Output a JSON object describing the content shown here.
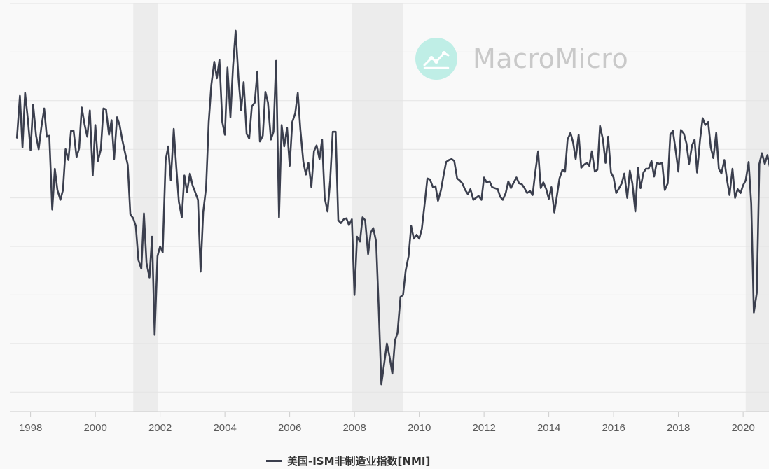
{
  "brand": {
    "name": "MacroMicro",
    "logo_icon": "trend-chart-icon"
  },
  "colors": {
    "line": "#3b3f4e",
    "recession": "#ececec",
    "grid": "#e4e4e4",
    "axis": "#cccccc",
    "logo_circle": "#bfeee6"
  },
  "chart_data": {
    "type": "line",
    "series": [
      {
        "name": "美国-ISM非制造业指数[NMI]",
        "points": [
          [
            1997.58,
            56.2
          ],
          [
            1997.67,
            60.5
          ],
          [
            1997.75,
            55.2
          ],
          [
            1997.83,
            60.8
          ],
          [
            1997.92,
            58.0
          ],
          [
            1998.0,
            54.9
          ],
          [
            1998.08,
            59.6
          ],
          [
            1998.17,
            56.4
          ],
          [
            1998.25,
            55.0
          ],
          [
            1998.33,
            57.2
          ],
          [
            1998.42,
            59.2
          ],
          [
            1998.5,
            56.3
          ],
          [
            1998.58,
            56.4
          ],
          [
            1998.67,
            48.8
          ],
          [
            1998.75,
            53.0
          ],
          [
            1998.83,
            50.8
          ],
          [
            1998.92,
            49.8
          ],
          [
            1999.0,
            50.8
          ],
          [
            1999.08,
            55.0
          ],
          [
            1999.17,
            53.9
          ],
          [
            1999.25,
            56.9
          ],
          [
            1999.33,
            56.9
          ],
          [
            1999.42,
            54.2
          ],
          [
            1999.5,
            55.1
          ],
          [
            1999.58,
            59.3
          ],
          [
            1999.67,
            57.5
          ],
          [
            1999.75,
            56.3
          ],
          [
            1999.83,
            59.0
          ],
          [
            1999.92,
            52.3
          ],
          [
            2000.0,
            57.5
          ],
          [
            2000.08,
            53.8
          ],
          [
            2000.17,
            55.0
          ],
          [
            2000.25,
            59.2
          ],
          [
            2000.33,
            59.1
          ],
          [
            2000.42,
            56.5
          ],
          [
            2000.5,
            58.0
          ],
          [
            2000.58,
            54.0
          ],
          [
            2000.67,
            58.3
          ],
          [
            2000.75,
            57.5
          ],
          [
            2000.83,
            56.0
          ],
          [
            2000.92,
            54.6
          ],
          [
            2001.0,
            53.4
          ],
          [
            2001.08,
            48.3
          ],
          [
            2001.17,
            47.9
          ],
          [
            2001.25,
            47.1
          ],
          [
            2001.33,
            43.6
          ],
          [
            2001.42,
            42.7
          ],
          [
            2001.5,
            48.4
          ],
          [
            2001.58,
            43.3
          ],
          [
            2001.67,
            41.8
          ],
          [
            2001.75,
            46.0
          ],
          [
            2001.83,
            35.9
          ],
          [
            2001.92,
            44.0
          ],
          [
            2002.0,
            45.0
          ],
          [
            2002.08,
            44.4
          ],
          [
            2002.17,
            53.9
          ],
          [
            2002.25,
            55.3
          ],
          [
            2002.33,
            51.8
          ],
          [
            2002.42,
            57.1
          ],
          [
            2002.5,
            53.1
          ],
          [
            2002.58,
            49.6
          ],
          [
            2002.67,
            48.0
          ],
          [
            2002.75,
            52.3
          ],
          [
            2002.83,
            50.6
          ],
          [
            2002.92,
            52.5
          ],
          [
            2003.0,
            51.3
          ],
          [
            2003.08,
            50.6
          ],
          [
            2003.17,
            49.8
          ],
          [
            2003.25,
            42.4
          ],
          [
            2003.33,
            48.5
          ],
          [
            2003.42,
            51.1
          ],
          [
            2003.5,
            57.8
          ],
          [
            2003.58,
            61.6
          ],
          [
            2003.67,
            64.0
          ],
          [
            2003.75,
            62.3
          ],
          [
            2003.83,
            64.2
          ],
          [
            2003.92,
            57.8
          ],
          [
            2004.0,
            56.5
          ],
          [
            2004.08,
            63.4
          ],
          [
            2004.17,
            58.3
          ],
          [
            2004.25,
            63.5
          ],
          [
            2004.33,
            67.2
          ],
          [
            2004.42,
            62.2
          ],
          [
            2004.5,
            59.0
          ],
          [
            2004.58,
            61.9
          ],
          [
            2004.67,
            56.6
          ],
          [
            2004.75,
            56.1
          ],
          [
            2004.83,
            59.4
          ],
          [
            2004.92,
            59.8
          ],
          [
            2005.0,
            63.0
          ],
          [
            2005.08,
            55.8
          ],
          [
            2005.17,
            56.4
          ],
          [
            2005.25,
            60.9
          ],
          [
            2005.33,
            59.8
          ],
          [
            2005.42,
            56.0
          ],
          [
            2005.5,
            56.8
          ],
          [
            2005.58,
            64.1
          ],
          [
            2005.67,
            48.0
          ],
          [
            2005.75,
            57.5
          ],
          [
            2005.83,
            55.3
          ],
          [
            2005.92,
            57.2
          ],
          [
            2006.0,
            53.3
          ],
          [
            2006.08,
            57.8
          ],
          [
            2006.17,
            58.7
          ],
          [
            2006.25,
            60.8
          ],
          [
            2006.33,
            57.0
          ],
          [
            2006.42,
            53.7
          ],
          [
            2006.5,
            52.4
          ],
          [
            2006.58,
            53.6
          ],
          [
            2006.67,
            51.1
          ],
          [
            2006.75,
            54.8
          ],
          [
            2006.83,
            55.4
          ],
          [
            2006.92,
            54.0
          ],
          [
            2007.0,
            56.0
          ],
          [
            2007.08,
            50.0
          ],
          [
            2007.17,
            48.6
          ],
          [
            2007.25,
            51.8
          ],
          [
            2007.33,
            56.8
          ],
          [
            2007.42,
            56.8
          ],
          [
            2007.5,
            47.7
          ],
          [
            2007.58,
            47.4
          ],
          [
            2007.67,
            47.8
          ],
          [
            2007.75,
            47.9
          ],
          [
            2007.83,
            47.2
          ],
          [
            2007.92,
            47.8
          ],
          [
            2008.0,
            40.0
          ],
          [
            2008.08,
            46.0
          ],
          [
            2008.17,
            45.5
          ],
          [
            2008.25,
            48.0
          ],
          [
            2008.33,
            47.7
          ],
          [
            2008.42,
            44.2
          ],
          [
            2008.5,
            46.4
          ],
          [
            2008.58,
            46.9
          ],
          [
            2008.67,
            45.5
          ],
          [
            2008.75,
            38.5
          ],
          [
            2008.83,
            30.8
          ],
          [
            2008.92,
            33.0
          ],
          [
            2009.0,
            35.0
          ],
          [
            2009.08,
            33.7
          ],
          [
            2009.17,
            31.9
          ],
          [
            2009.25,
            35.3
          ],
          [
            2009.33,
            36.1
          ],
          [
            2009.42,
            39.8
          ],
          [
            2009.5,
            40.0
          ],
          [
            2009.58,
            42.5
          ],
          [
            2009.67,
            44.0
          ],
          [
            2009.75,
            47.1
          ],
          [
            2009.83,
            45.8
          ],
          [
            2009.92,
            46.2
          ],
          [
            2010.0,
            45.8
          ],
          [
            2010.08,
            46.8
          ],
          [
            2010.17,
            49.5
          ],
          [
            2010.25,
            52.0
          ],
          [
            2010.33,
            51.9
          ],
          [
            2010.42,
            51.1
          ],
          [
            2010.5,
            51.2
          ],
          [
            2010.58,
            49.7
          ],
          [
            2010.67,
            50.8
          ],
          [
            2010.75,
            52.3
          ],
          [
            2010.83,
            53.7
          ],
          [
            2010.92,
            53.9
          ],
          [
            2011.0,
            54.0
          ],
          [
            2011.08,
            53.8
          ],
          [
            2011.17,
            52.0
          ],
          [
            2011.25,
            51.8
          ],
          [
            2011.33,
            51.5
          ],
          [
            2011.42,
            50.8
          ],
          [
            2011.5,
            50.4
          ],
          [
            2011.58,
            50.9
          ],
          [
            2011.67,
            49.8
          ],
          [
            2011.75,
            50.0
          ],
          [
            2011.83,
            50.2
          ],
          [
            2011.92,
            49.8
          ],
          [
            2012.0,
            52.1
          ],
          [
            2012.08,
            51.6
          ],
          [
            2012.17,
            51.7
          ],
          [
            2012.25,
            51.1
          ],
          [
            2012.33,
            51.0
          ],
          [
            2012.42,
            50.9
          ],
          [
            2012.5,
            50.1
          ],
          [
            2012.58,
            49.8
          ],
          [
            2012.67,
            50.5
          ],
          [
            2012.75,
            51.7
          ],
          [
            2012.83,
            51.0
          ],
          [
            2012.92,
            51.6
          ],
          [
            2013.0,
            52.1
          ],
          [
            2013.08,
            51.5
          ],
          [
            2013.17,
            51.4
          ],
          [
            2013.25,
            51.0
          ],
          [
            2013.33,
            50.5
          ],
          [
            2013.42,
            50.7
          ],
          [
            2013.5,
            50.3
          ],
          [
            2013.58,
            52.6
          ],
          [
            2013.67,
            54.8
          ],
          [
            2013.75,
            51.0
          ],
          [
            2013.83,
            51.6
          ],
          [
            2013.92,
            50.9
          ],
          [
            2014.0,
            49.9
          ],
          [
            2014.08,
            51.1
          ],
          [
            2014.17,
            48.5
          ],
          [
            2014.25,
            50.2
          ],
          [
            2014.33,
            52.0
          ],
          [
            2014.42,
            52.9
          ],
          [
            2014.5,
            52.7
          ],
          [
            2014.58,
            56.0
          ],
          [
            2014.67,
            56.7
          ],
          [
            2014.75,
            55.7
          ],
          [
            2014.83,
            54.0
          ],
          [
            2014.92,
            56.5
          ],
          [
            2015.0,
            53.1
          ],
          [
            2015.08,
            53.4
          ],
          [
            2015.17,
            53.6
          ],
          [
            2015.25,
            53.3
          ],
          [
            2015.33,
            54.8
          ],
          [
            2015.42,
            52.7
          ],
          [
            2015.5,
            52.9
          ],
          [
            2015.58,
            57.4
          ],
          [
            2015.67,
            56.0
          ],
          [
            2015.75,
            53.6
          ],
          [
            2015.83,
            56.3
          ],
          [
            2015.92,
            52.6
          ],
          [
            2016.0,
            52.1
          ],
          [
            2016.08,
            50.5
          ],
          [
            2016.17,
            51.0
          ],
          [
            2016.25,
            51.5
          ],
          [
            2016.33,
            52.5
          ],
          [
            2016.42,
            50.0
          ],
          [
            2016.5,
            52.8
          ],
          [
            2016.58,
            51.5
          ],
          [
            2016.67,
            48.6
          ],
          [
            2016.75,
            53.1
          ],
          [
            2016.83,
            51.0
          ],
          [
            2016.92,
            52.6
          ],
          [
            2017.0,
            53.0
          ],
          [
            2017.08,
            53.0
          ],
          [
            2017.17,
            53.8
          ],
          [
            2017.25,
            52.2
          ],
          [
            2017.33,
            53.6
          ],
          [
            2017.42,
            53.5
          ],
          [
            2017.5,
            53.6
          ],
          [
            2017.58,
            50.8
          ],
          [
            2017.67,
            51.5
          ],
          [
            2017.75,
            56.5
          ],
          [
            2017.83,
            56.9
          ],
          [
            2017.92,
            54.8
          ],
          [
            2018.0,
            52.7
          ],
          [
            2018.08,
            57.0
          ],
          [
            2018.17,
            56.6
          ],
          [
            2018.25,
            55.6
          ],
          [
            2018.33,
            53.5
          ],
          [
            2018.42,
            55.4
          ],
          [
            2018.5,
            56.0
          ],
          [
            2018.58,
            52.6
          ],
          [
            2018.67,
            56.0
          ],
          [
            2018.75,
            58.2
          ],
          [
            2018.83,
            57.5
          ],
          [
            2018.92,
            57.8
          ],
          [
            2019.0,
            55.2
          ],
          [
            2019.08,
            54.1
          ],
          [
            2019.17,
            56.7
          ],
          [
            2019.25,
            53.0
          ],
          [
            2019.33,
            52.5
          ],
          [
            2019.42,
            53.9
          ],
          [
            2019.5,
            51.9
          ],
          [
            2019.58,
            50.3
          ],
          [
            2019.67,
            53.0
          ],
          [
            2019.75,
            50.0
          ],
          [
            2019.83,
            50.9
          ],
          [
            2019.92,
            50.5
          ],
          [
            2020.0,
            51.3
          ],
          [
            2020.08,
            51.8
          ],
          [
            2020.17,
            53.7
          ],
          [
            2020.25,
            49.4
          ],
          [
            2020.33,
            38.2
          ],
          [
            2020.42,
            40.2
          ],
          [
            2020.5,
            53.5
          ],
          [
            2020.58,
            54.6
          ],
          [
            2020.67,
            53.5
          ],
          [
            2020.75,
            54.4
          ],
          [
            2020.83,
            53.1
          ],
          [
            2020.92,
            52.4
          ]
        ]
      }
    ],
    "xlim": [
      1997.5,
      2021.0
    ],
    "ylim": [
      28,
      70
    ],
    "x_ticks": [
      "1998",
      "2000",
      "2002",
      "2004",
      "2006",
      "2008",
      "2010",
      "2012",
      "2014",
      "2016",
      "2018",
      "2020"
    ],
    "y_ticks": [
      30,
      35,
      40,
      45,
      50,
      55,
      60,
      65,
      70
    ],
    "y_tick_labels_shown": false,
    "grid": "horizontal",
    "recessions": [
      [
        2001.17,
        2001.92
      ],
      [
        2007.92,
        2009.5
      ],
      [
        2020.08,
        2021.0
      ]
    ],
    "legend": {
      "position": "bottom-center",
      "label": "美国-ISM非制造业指数[NMI]"
    }
  }
}
